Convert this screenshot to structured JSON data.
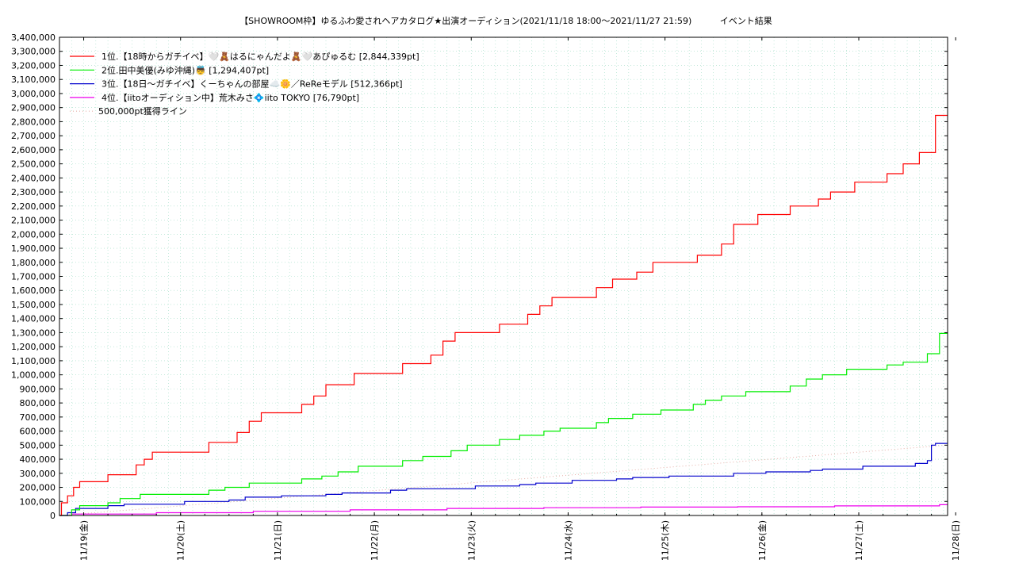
{
  "chart_data": {
    "type": "line",
    "title": "【SHOWROOM枠】ゆるふわ愛されヘアカタログ★出演オーディション(2021/11/18 18:00〜2021/11/27 21:59)",
    "subtitle": "イベント結果",
    "xlabel": "",
    "ylabel": "",
    "xlim": [
      "2021-11-18 18:00",
      "2021-11-27 22:00"
    ],
    "ylim": [
      0,
      3400000
    ],
    "y_ticks": [
      0,
      100000,
      200000,
      300000,
      400000,
      500000,
      600000,
      700000,
      800000,
      900000,
      1000000,
      1100000,
      1200000,
      1300000,
      1400000,
      1500000,
      1600000,
      1700000,
      1800000,
      1900000,
      2000000,
      2100000,
      2200000,
      2300000,
      2400000,
      2500000,
      2600000,
      2700000,
      2800000,
      2900000,
      3000000,
      3100000,
      3200000,
      3300000,
      3400000
    ],
    "y_tick_labels": [
      "0",
      "100,000",
      "200,000",
      "300,000",
      "400,000",
      "500,000",
      "600,000",
      "700,000",
      "800,000",
      "900,000",
      "1,000,000",
      "1,100,000",
      "1,200,000",
      "1,300,000",
      "1,400,000",
      "1,500,000",
      "1,600,000",
      "1,700,000",
      "1,800,000",
      "1,900,000",
      "2,000,000",
      "2,100,000",
      "2,200,000",
      "2,300,000",
      "2,400,000",
      "2,500,000",
      "2,600,000",
      "2,700,000",
      "2,800,000",
      "2,900,000",
      "3,000,000",
      "3,100,000",
      "3,200,000",
      "3,300,000",
      "3,400,000"
    ],
    "x_ticks": [
      "2021-11-19 00:00",
      "2021-11-20 00:00",
      "2021-11-21 00:00",
      "2021-11-22 00:00",
      "2021-11-23 00:00",
      "2021-11-24 00:00",
      "2021-11-25 00:00",
      "2021-11-26 00:00",
      "2021-11-27 00:00",
      "2021-11-28 00:00"
    ],
    "x_tick_labels": [
      "11/19(金)",
      "11/20(土)",
      "11/21(日)",
      "11/22(月)",
      "11/23(火)",
      "11/24(水)",
      "11/25(木)",
      "11/26(金)",
      "11/27(土)",
      "11/28(日)"
    ],
    "grid": true,
    "legend_position": "top-left",
    "series": [
      {
        "name": "1位.【18時からガチイベ】🤍🧸はるにゃんだよ🧸🤍あぴゅるむ [2,844,339pt]",
        "color": "#ff0000",
        "points": [
          [
            "2021-11-18 18:00",
            0
          ],
          [
            "2021-11-18 18:30",
            90000
          ],
          [
            "2021-11-18 20:00",
            140000
          ],
          [
            "2021-11-18 21:30",
            200000
          ],
          [
            "2021-11-18 23:00",
            240000
          ],
          [
            "2021-11-19 05:00",
            240000
          ],
          [
            "2021-11-19 06:00",
            290000
          ],
          [
            "2021-11-19 12:00",
            290000
          ],
          [
            "2021-11-19 13:00",
            360000
          ],
          [
            "2021-11-19 15:00",
            400000
          ],
          [
            "2021-11-19 17:00",
            450000
          ],
          [
            "2021-11-20 06:00",
            450000
          ],
          [
            "2021-11-20 07:00",
            520000
          ],
          [
            "2021-11-20 14:00",
            590000
          ],
          [
            "2021-11-20 17:00",
            670000
          ],
          [
            "2021-11-20 20:00",
            730000
          ],
          [
            "2021-11-21 05:00",
            730000
          ],
          [
            "2021-11-21 06:00",
            790000
          ],
          [
            "2021-11-21 09:00",
            850000
          ],
          [
            "2021-11-21 12:00",
            930000
          ],
          [
            "2021-11-21 19:00",
            1010000
          ],
          [
            "2021-11-22 06:00",
            1010000
          ],
          [
            "2021-11-22 07:00",
            1080000
          ],
          [
            "2021-11-22 14:00",
            1140000
          ],
          [
            "2021-11-22 17:00",
            1240000
          ],
          [
            "2021-11-22 20:00",
            1300000
          ],
          [
            "2021-11-23 06:00",
            1300000
          ],
          [
            "2021-11-23 07:00",
            1360000
          ],
          [
            "2021-11-23 14:00",
            1430000
          ],
          [
            "2021-11-23 17:00",
            1490000
          ],
          [
            "2021-11-23 20:00",
            1550000
          ],
          [
            "2021-11-24 06:00",
            1550000
          ],
          [
            "2021-11-24 07:00",
            1620000
          ],
          [
            "2021-11-24 11:00",
            1680000
          ],
          [
            "2021-11-24 17:00",
            1730000
          ],
          [
            "2021-11-24 21:00",
            1800000
          ],
          [
            "2021-11-25 07:00",
            1800000
          ],
          [
            "2021-11-25 08:00",
            1850000
          ],
          [
            "2021-11-25 14:00",
            1930000
          ],
          [
            "2021-11-25 17:00",
            2070000
          ],
          [
            "2021-11-25 23:00",
            2140000
          ],
          [
            "2021-11-26 06:00",
            2140000
          ],
          [
            "2021-11-26 07:00",
            2200000
          ],
          [
            "2021-11-26 14:00",
            2250000
          ],
          [
            "2021-11-26 17:00",
            2300000
          ],
          [
            "2021-11-26 23:00",
            2370000
          ],
          [
            "2021-11-27 06:00",
            2370000
          ],
          [
            "2021-11-27 07:00",
            2430000
          ],
          [
            "2021-11-27 11:00",
            2500000
          ],
          [
            "2021-11-27 15:00",
            2580000
          ],
          [
            "2021-11-27 19:00",
            2844339
          ],
          [
            "2021-11-27 22:00",
            2844339
          ]
        ]
      },
      {
        "name": "2位.田中美優(みゆ沖縄)👼 [1,294,407pt]",
        "color": "#00ee00",
        "points": [
          [
            "2021-11-18 18:00",
            0
          ],
          [
            "2021-11-18 21:00",
            40000
          ],
          [
            "2021-11-18 23:00",
            70000
          ],
          [
            "2021-11-19 05:00",
            70000
          ],
          [
            "2021-11-19 06:00",
            90000
          ],
          [
            "2021-11-19 09:00",
            120000
          ],
          [
            "2021-11-19 14:00",
            150000
          ],
          [
            "2021-11-20 06:00",
            150000
          ],
          [
            "2021-11-20 07:00",
            180000
          ],
          [
            "2021-11-20 11:00",
            200000
          ],
          [
            "2021-11-20 17:00",
            230000
          ],
          [
            "2021-11-21 05:00",
            230000
          ],
          [
            "2021-11-21 06:00",
            260000
          ],
          [
            "2021-11-21 11:00",
            280000
          ],
          [
            "2021-11-21 15:00",
            310000
          ],
          [
            "2021-11-21 20:00",
            350000
          ],
          [
            "2021-11-22 06:00",
            350000
          ],
          [
            "2021-11-22 07:00",
            390000
          ],
          [
            "2021-11-22 12:00",
            420000
          ],
          [
            "2021-11-22 19:00",
            460000
          ],
          [
            "2021-11-22 23:00",
            500000
          ],
          [
            "2021-11-23 06:00",
            500000
          ],
          [
            "2021-11-23 07:00",
            540000
          ],
          [
            "2021-11-23 12:00",
            570000
          ],
          [
            "2021-11-23 18:00",
            600000
          ],
          [
            "2021-11-23 22:00",
            620000
          ],
          [
            "2021-11-24 06:00",
            620000
          ],
          [
            "2021-11-24 07:00",
            660000
          ],
          [
            "2021-11-24 10:00",
            690000
          ],
          [
            "2021-11-24 16:00",
            720000
          ],
          [
            "2021-11-24 23:00",
            750000
          ],
          [
            "2021-11-25 06:00",
            750000
          ],
          [
            "2021-11-25 07:00",
            790000
          ],
          [
            "2021-11-25 10:00",
            820000
          ],
          [
            "2021-11-25 14:00",
            850000
          ],
          [
            "2021-11-25 20:00",
            880000
          ],
          [
            "2021-11-26 06:00",
            880000
          ],
          [
            "2021-11-26 07:00",
            920000
          ],
          [
            "2021-11-26 11:00",
            970000
          ],
          [
            "2021-11-26 15:00",
            1000000
          ],
          [
            "2021-11-26 21:00",
            1040000
          ],
          [
            "2021-11-27 06:00",
            1040000
          ],
          [
            "2021-11-27 07:00",
            1070000
          ],
          [
            "2021-11-27 11:00",
            1090000
          ],
          [
            "2021-11-27 17:00",
            1150000
          ],
          [
            "2021-11-27 20:00",
            1294407
          ],
          [
            "2021-11-27 22:00",
            1294407
          ]
        ]
      },
      {
        "name": "3位.【18日〜ガチイベ】くーちゃんの部屋☁️🌼／ReReモデル [512,366pt]",
        "color": "#0000cc",
        "points": [
          [
            "2021-11-18 18:00",
            0
          ],
          [
            "2021-11-18 20:00",
            20000
          ],
          [
            "2021-11-18 22:00",
            50000
          ],
          [
            "2021-11-19 05:00",
            50000
          ],
          [
            "2021-11-19 06:00",
            70000
          ],
          [
            "2021-11-19 10:00",
            80000
          ],
          [
            "2021-11-20 00:00",
            80000
          ],
          [
            "2021-11-20 01:00",
            100000
          ],
          [
            "2021-11-20 12:00",
            110000
          ],
          [
            "2021-11-20 16:00",
            130000
          ],
          [
            "2021-11-21 00:00",
            130000
          ],
          [
            "2021-11-21 01:00",
            140000
          ],
          [
            "2021-11-21 12:00",
            150000
          ],
          [
            "2021-11-21 16:00",
            160000
          ],
          [
            "2021-11-22 03:00",
            160000
          ],
          [
            "2021-11-22 04:00",
            180000
          ],
          [
            "2021-11-22 08:00",
            190000
          ],
          [
            "2021-11-23 00:00",
            190000
          ],
          [
            "2021-11-23 01:00",
            210000
          ],
          [
            "2021-11-23 12:00",
            220000
          ],
          [
            "2021-11-23 16:00",
            230000
          ],
          [
            "2021-11-24 00:00",
            230000
          ],
          [
            "2021-11-24 01:00",
            250000
          ],
          [
            "2021-11-24 12:00",
            260000
          ],
          [
            "2021-11-24 16:00",
            270000
          ],
          [
            "2021-11-25 00:00",
            270000
          ],
          [
            "2021-11-25 01:00",
            280000
          ],
          [
            "2021-11-25 17:00",
            300000
          ],
          [
            "2021-11-26 00:00",
            300000
          ],
          [
            "2021-11-26 01:00",
            310000
          ],
          [
            "2021-11-26 12:00",
            320000
          ],
          [
            "2021-11-26 15:00",
            330000
          ],
          [
            "2021-11-27 00:00",
            330000
          ],
          [
            "2021-11-27 01:00",
            350000
          ],
          [
            "2021-11-27 14:00",
            370000
          ],
          [
            "2021-11-27 17:00",
            390000
          ],
          [
            "2021-11-27 18:00",
            500000
          ],
          [
            "2021-11-27 19:00",
            512366
          ],
          [
            "2021-11-27 22:00",
            512366
          ]
        ]
      },
      {
        "name": "4位.【iitoオーディション中】荒木みさ💠iito TOKYO [76,790pt]",
        "color": "#ee00ee",
        "points": [
          [
            "2021-11-18 18:00",
            0
          ],
          [
            "2021-11-18 21:00",
            10000
          ],
          [
            "2021-11-19 18:00",
            20000
          ],
          [
            "2021-11-20 18:00",
            30000
          ],
          [
            "2021-11-21 18:00",
            40000
          ],
          [
            "2021-11-22 18:00",
            50000
          ],
          [
            "2021-11-23 18:00",
            55000
          ],
          [
            "2021-11-24 18:00",
            60000
          ],
          [
            "2021-11-25 18:00",
            62000
          ],
          [
            "2021-11-26 18:00",
            68000
          ],
          [
            "2021-11-27 20:00",
            76790
          ],
          [
            "2021-11-27 22:00",
            76790
          ]
        ]
      }
    ],
    "reference_line": {
      "name": "500,000pt獲得ライン",
      "color": "#e6b0a8",
      "points": [
        [
          "2021-11-18 18:00",
          0
        ],
        [
          "2021-11-27 22:00",
          500000
        ]
      ]
    }
  }
}
